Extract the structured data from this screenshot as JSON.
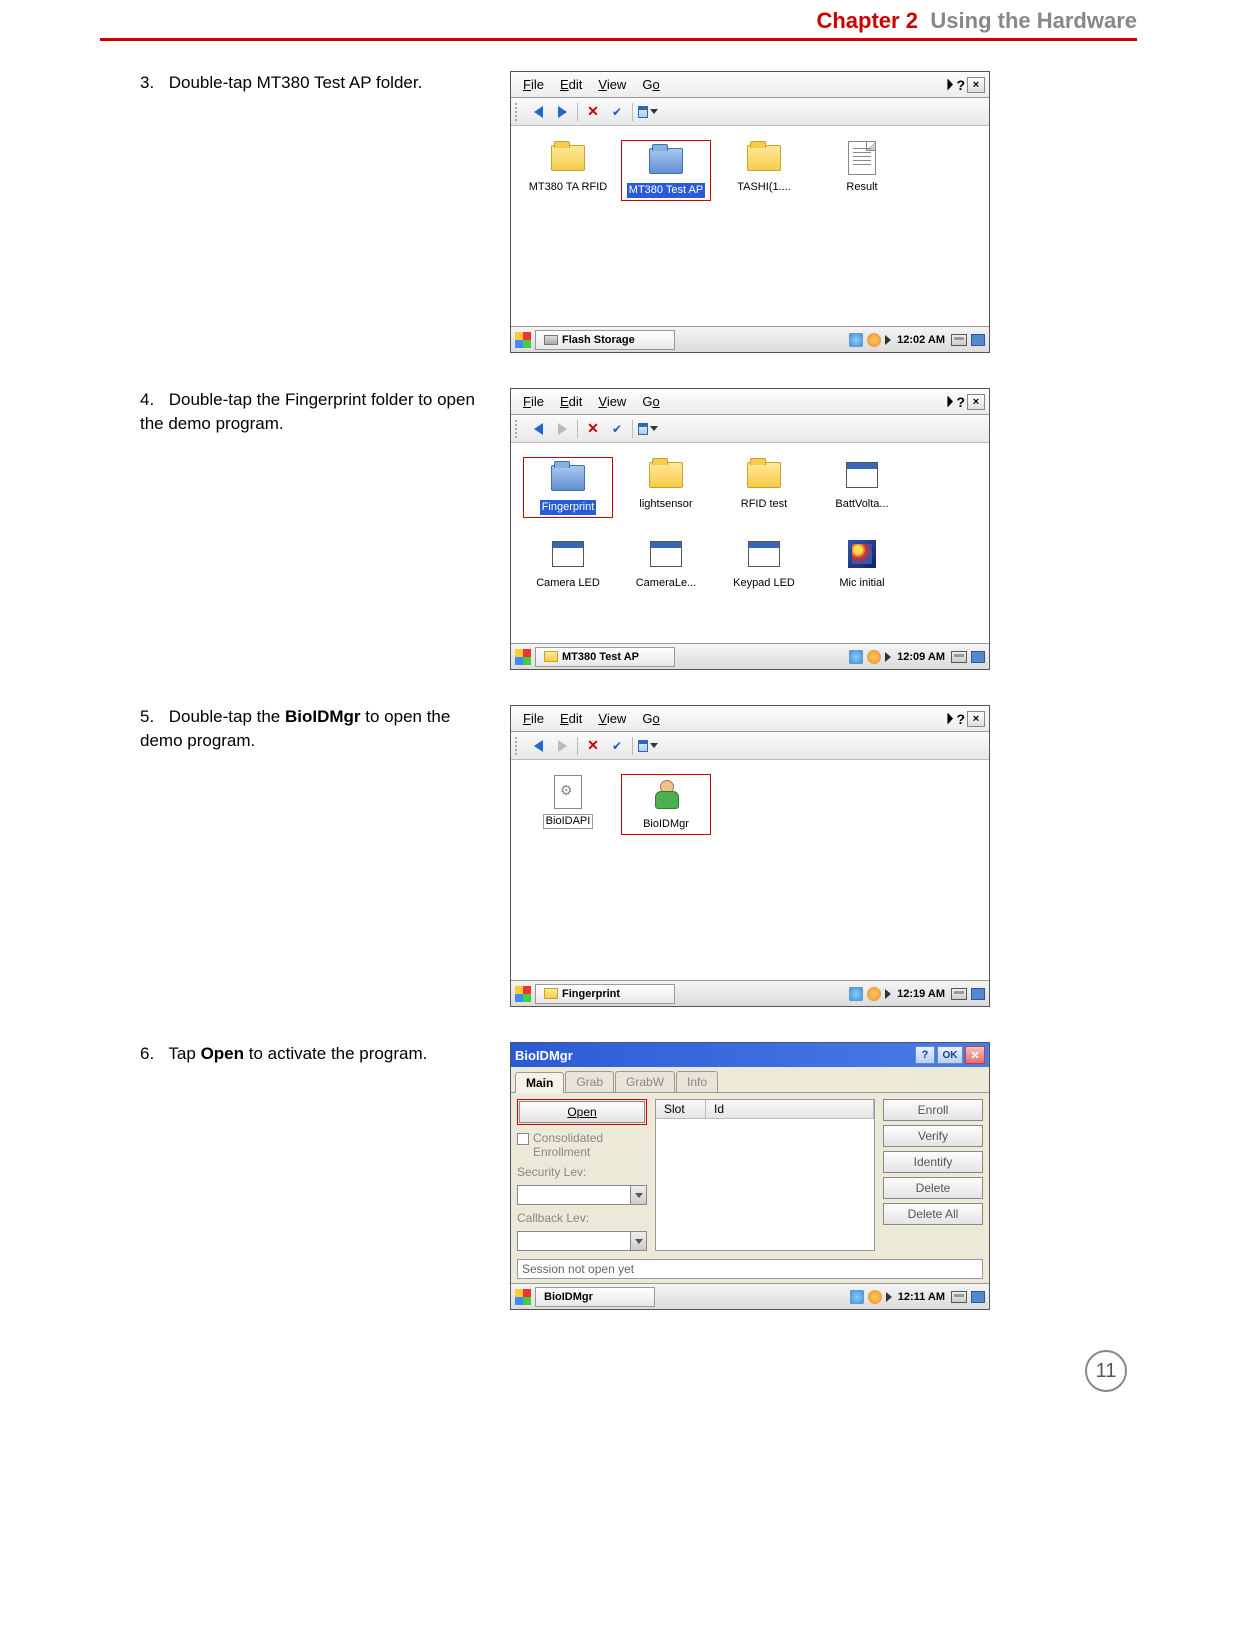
{
  "header": {
    "chapter_num": "Chapter 2",
    "chapter_title": "Using the Hardware",
    "rule_color": "#cc0000"
  },
  "steps": [
    {
      "num": "3.",
      "text": "Double-tap MT380 Test AP folder.",
      "screen": {
        "menus": [
          "File",
          "Edit",
          "View",
          "Go"
        ],
        "items": [
          {
            "label": "MT380 TA RFID",
            "type": "folder"
          },
          {
            "label": "MT380 Test AP",
            "type": "folder-blue",
            "selected": true,
            "highlight": true
          },
          {
            "label": "TASHI(1....",
            "type": "folder"
          },
          {
            "label": "Result",
            "type": "doc"
          }
        ],
        "taskbar_label": "Flash Storage",
        "taskbar_icon": "drive",
        "time": "12:02 AM"
      }
    },
    {
      "num": "4.",
      "text": "Double-tap the Fingerprint folder to open the demo program.",
      "screen": {
        "menus": [
          "File",
          "Edit",
          "View",
          "Go"
        ],
        "items": [
          {
            "label": "Fingerprint",
            "type": "folder-blue",
            "selected": true,
            "highlight": true
          },
          {
            "label": "lightsensor",
            "type": "folder"
          },
          {
            "label": "RFID test",
            "type": "folder"
          },
          {
            "label": "BattVolta...",
            "type": "app"
          },
          {
            "label": "Camera LED",
            "type": "app"
          },
          {
            "label": "CameraLe...",
            "type": "app"
          },
          {
            "label": "Keypad LED",
            "type": "app"
          },
          {
            "label": "Mic initial",
            "type": "cube"
          }
        ],
        "back_dim": false,
        "fwd_dim": true,
        "taskbar_label": "MT380 Test AP",
        "taskbar_icon": "folder",
        "time": "12:09 AM"
      }
    },
    {
      "num": "5.",
      "text_pre": "Double-tap the ",
      "text_bold": "BioIDMgr",
      "text_post": " to open the demo program.",
      "screen": {
        "menus": [
          "File",
          "Edit",
          "View",
          "Go"
        ],
        "items": [
          {
            "label": "BioIDAPI",
            "type": "gear-doc",
            "boxed": true
          },
          {
            "label": "BioIDMgr",
            "type": "person",
            "highlight": true
          }
        ],
        "back_dim": false,
        "fwd_dim": true,
        "taskbar_label": "Fingerprint",
        "taskbar_icon": "folder",
        "time": "12:19 AM"
      }
    },
    {
      "num": "6.",
      "text_pre": "Tap ",
      "text_bold": "Open",
      "text_post": " to activate the program.",
      "bio": {
        "title": "BioIDMgr",
        "tabs": [
          "Main",
          "Grab",
          "GrabW",
          "Info"
        ],
        "open_label": "Open",
        "consolidated": "Consolidated Enrollment",
        "sec_label": "Security Lev:",
        "callback_label": "Callback Lev:",
        "cols": [
          "Slot",
          "Id"
        ],
        "right_buttons": [
          "Enroll",
          "Verify",
          "Identify",
          "Delete",
          "Delete All"
        ],
        "status": "Session not open yet",
        "taskbar_label": "BioIDMgr",
        "time": "12:11 AM"
      }
    }
  ],
  "page_number": "11"
}
